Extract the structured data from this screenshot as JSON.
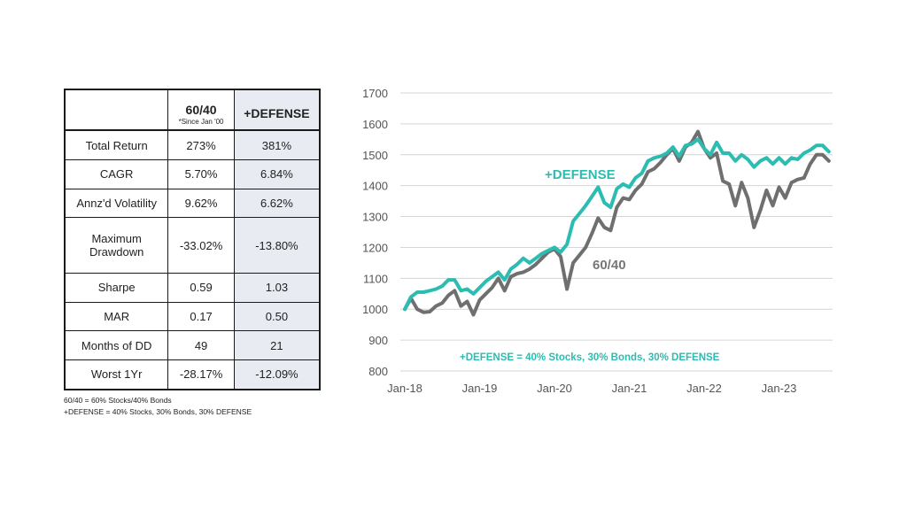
{
  "table": {
    "header": {
      "col_a": "60/40",
      "col_a_sub": "*Since Jan '00",
      "col_b": "+DEFENSE"
    },
    "rows": [
      {
        "label": "Total Return",
        "a": "273%",
        "b": "381%"
      },
      {
        "label": "CAGR",
        "a": "5.70%",
        "b": "6.84%"
      },
      {
        "label": "Annz'd Volatility",
        "a": "9.62%",
        "b": "6.62%"
      },
      {
        "label": "Maximum Drawdown",
        "a": "-33.02%",
        "b": "-13.80%"
      },
      {
        "label": "Sharpe",
        "a": "0.59",
        "b": "1.03"
      },
      {
        "label": "MAR",
        "a": "0.17",
        "b": "0.50"
      },
      {
        "label": "Months of DD",
        "a": "49",
        "b": "21"
      },
      {
        "label": "Worst 1Yr",
        "a": "-28.17%",
        "b": "-12.09%"
      }
    ],
    "notes": [
      "60/40 = 60% Stocks/40% Bonds",
      "+DEFENSE = 40% Stocks, 30% Bonds, 30% DEFENSE"
    ]
  },
  "colors": {
    "defense": "#2bbcb2",
    "sixty_forty": "#6f6f6f",
    "grid": "#d6d6d6"
  },
  "chart_data": {
    "type": "line",
    "title": "",
    "xlabel": "",
    "ylabel": "",
    "ylim": [
      800,
      1700
    ],
    "yticks": [
      800,
      900,
      1000,
      1100,
      1200,
      1300,
      1400,
      1500,
      1600,
      1700
    ],
    "xlim": [
      "2018-01",
      "2023-09"
    ],
    "xticks": [
      "Jan-18",
      "Jan-19",
      "Jan-20",
      "Jan-21",
      "Jan-22",
      "Jan-23"
    ],
    "grid": "horizontal",
    "annotations": {
      "defense_label": "+DEFENSE",
      "sixty_forty_label": "60/40",
      "note": "+DEFENSE = 40% Stocks, 30% Bonds, 30% DEFENSE"
    },
    "series": [
      {
        "name": "60/40",
        "points": [
          [
            "2018-01",
            1000
          ],
          [
            "2018-02",
            1035
          ],
          [
            "2018-03",
            1000
          ],
          [
            "2018-04",
            990
          ],
          [
            "2018-05",
            992
          ],
          [
            "2018-06",
            1010
          ],
          [
            "2018-07",
            1020
          ],
          [
            "2018-08",
            1045
          ],
          [
            "2018-09",
            1060
          ],
          [
            "2018-10",
            1010
          ],
          [
            "2018-11",
            1025
          ],
          [
            "2018-12",
            982
          ],
          [
            "2019-01",
            1030
          ],
          [
            "2019-02",
            1050
          ],
          [
            "2019-03",
            1070
          ],
          [
            "2019-04",
            1100
          ],
          [
            "2019-05",
            1060
          ],
          [
            "2019-06",
            1105
          ],
          [
            "2019-07",
            1115
          ],
          [
            "2019-08",
            1120
          ],
          [
            "2019-09",
            1130
          ],
          [
            "2019-10",
            1145
          ],
          [
            "2019-11",
            1165
          ],
          [
            "2019-12",
            1185
          ],
          [
            "2020-01",
            1195
          ],
          [
            "2020-02",
            1170
          ],
          [
            "2020-03",
            1065
          ],
          [
            "2020-04",
            1150
          ],
          [
            "2020-05",
            1175
          ],
          [
            "2020-06",
            1200
          ],
          [
            "2020-07",
            1245
          ],
          [
            "2020-08",
            1295
          ],
          [
            "2020-09",
            1265
          ],
          [
            "2020-10",
            1255
          ],
          [
            "2020-11",
            1330
          ],
          [
            "2020-12",
            1360
          ],
          [
            "2021-01",
            1355
          ],
          [
            "2021-02",
            1385
          ],
          [
            "2021-03",
            1405
          ],
          [
            "2021-04",
            1445
          ],
          [
            "2021-05",
            1455
          ],
          [
            "2021-06",
            1475
          ],
          [
            "2021-07",
            1500
          ],
          [
            "2021-08",
            1520
          ],
          [
            "2021-09",
            1480
          ],
          [
            "2021-10",
            1525
          ],
          [
            "2021-11",
            1540
          ],
          [
            "2021-12",
            1575
          ],
          [
            "2022-01",
            1520
          ],
          [
            "2022-02",
            1490
          ],
          [
            "2022-03",
            1505
          ],
          [
            "2022-04",
            1415
          ],
          [
            "2022-05",
            1405
          ],
          [
            "2022-06",
            1335
          ],
          [
            "2022-07",
            1410
          ],
          [
            "2022-08",
            1360
          ],
          [
            "2022-09",
            1265
          ],
          [
            "2022-10",
            1320
          ],
          [
            "2022-11",
            1385
          ],
          [
            "2022-12",
            1335
          ],
          [
            "2023-01",
            1395
          ],
          [
            "2023-02",
            1360
          ],
          [
            "2023-03",
            1410
          ],
          [
            "2023-04",
            1420
          ],
          [
            "2023-05",
            1425
          ],
          [
            "2023-06",
            1470
          ],
          [
            "2023-07",
            1500
          ],
          [
            "2023-08",
            1500
          ],
          [
            "2023-09",
            1480
          ]
        ]
      },
      {
        "name": "+DEFENSE",
        "points": [
          [
            "2018-01",
            1000
          ],
          [
            "2018-02",
            1040
          ],
          [
            "2018-03",
            1055
          ],
          [
            "2018-04",
            1055
          ],
          [
            "2018-05",
            1060
          ],
          [
            "2018-06",
            1065
          ],
          [
            "2018-07",
            1075
          ],
          [
            "2018-08",
            1095
          ],
          [
            "2018-09",
            1095
          ],
          [
            "2018-10",
            1060
          ],
          [
            "2018-11",
            1065
          ],
          [
            "2018-12",
            1050
          ],
          [
            "2019-01",
            1070
          ],
          [
            "2019-02",
            1090
          ],
          [
            "2019-03",
            1105
          ],
          [
            "2019-04",
            1120
          ],
          [
            "2019-05",
            1095
          ],
          [
            "2019-06",
            1130
          ],
          [
            "2019-07",
            1145
          ],
          [
            "2019-08",
            1165
          ],
          [
            "2019-09",
            1150
          ],
          [
            "2019-10",
            1165
          ],
          [
            "2019-11",
            1180
          ],
          [
            "2019-12",
            1190
          ],
          [
            "2020-01",
            1200
          ],
          [
            "2020-02",
            1185
          ],
          [
            "2020-03",
            1210
          ],
          [
            "2020-04",
            1285
          ],
          [
            "2020-05",
            1310
          ],
          [
            "2020-06",
            1335
          ],
          [
            "2020-07",
            1365
          ],
          [
            "2020-08",
            1395
          ],
          [
            "2020-09",
            1345
          ],
          [
            "2020-10",
            1330
          ],
          [
            "2020-11",
            1390
          ],
          [
            "2020-12",
            1405
          ],
          [
            "2021-01",
            1395
          ],
          [
            "2021-02",
            1425
          ],
          [
            "2021-03",
            1440
          ],
          [
            "2021-04",
            1480
          ],
          [
            "2021-05",
            1490
          ],
          [
            "2021-06",
            1495
          ],
          [
            "2021-07",
            1505
          ],
          [
            "2021-08",
            1525
          ],
          [
            "2021-09",
            1495
          ],
          [
            "2021-10",
            1530
          ],
          [
            "2021-11",
            1535
          ],
          [
            "2021-12",
            1550
          ],
          [
            "2022-01",
            1520
          ],
          [
            "2022-02",
            1500
          ],
          [
            "2022-03",
            1540
          ],
          [
            "2022-04",
            1505
          ],
          [
            "2022-05",
            1505
          ],
          [
            "2022-06",
            1480
          ],
          [
            "2022-07",
            1500
          ],
          [
            "2022-08",
            1485
          ],
          [
            "2022-09",
            1460
          ],
          [
            "2022-10",
            1480
          ],
          [
            "2022-11",
            1490
          ],
          [
            "2022-12",
            1470
          ],
          [
            "2023-01",
            1490
          ],
          [
            "2023-02",
            1470
          ],
          [
            "2023-03",
            1490
          ],
          [
            "2023-04",
            1485
          ],
          [
            "2023-05",
            1505
          ],
          [
            "2023-06",
            1515
          ],
          [
            "2023-07",
            1530
          ],
          [
            "2023-08",
            1530
          ],
          [
            "2023-09",
            1510
          ]
        ]
      }
    ]
  }
}
